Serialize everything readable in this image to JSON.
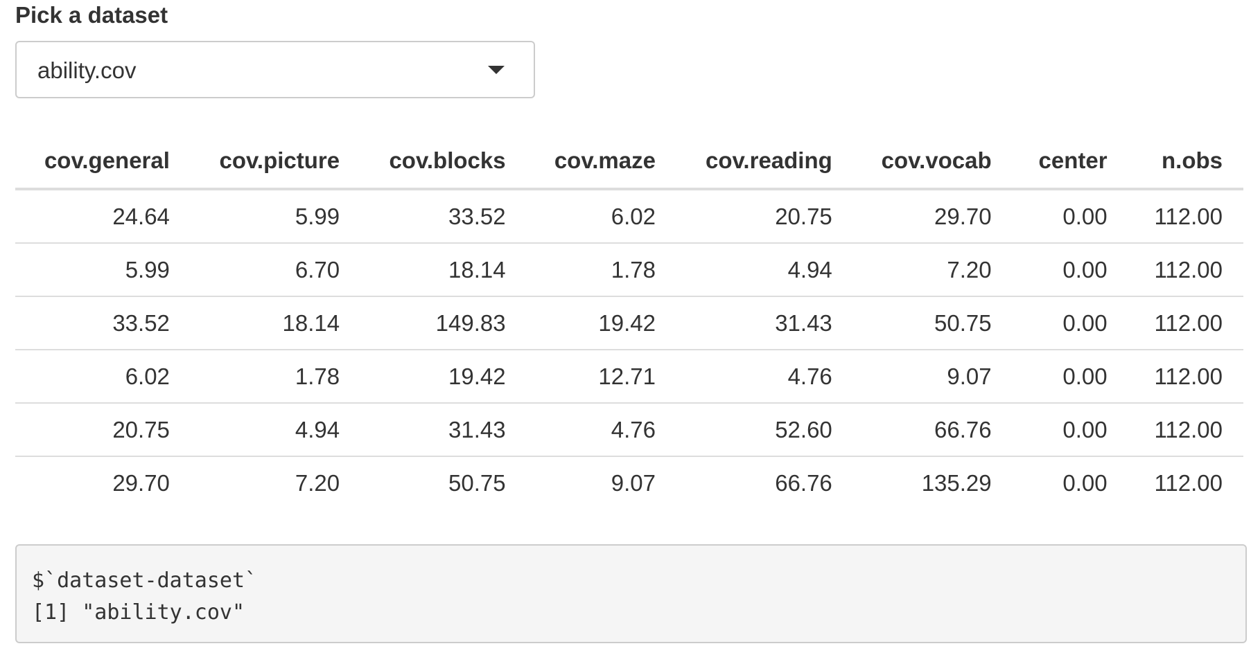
{
  "select": {
    "label": "Pick a dataset",
    "value": "ability.cov",
    "caret_icon": "caret-down-icon"
  },
  "table": {
    "columns": [
      "cov.general",
      "cov.picture",
      "cov.blocks",
      "cov.maze",
      "cov.reading",
      "cov.vocab",
      "center",
      "n.obs"
    ],
    "rows": [
      [
        "24.64",
        "5.99",
        "33.52",
        "6.02",
        "20.75",
        "29.70",
        "0.00",
        "112.00"
      ],
      [
        "5.99",
        "6.70",
        "18.14",
        "1.78",
        "4.94",
        "7.20",
        "0.00",
        "112.00"
      ],
      [
        "33.52",
        "18.14",
        "149.83",
        "19.42",
        "31.43",
        "50.75",
        "0.00",
        "112.00"
      ],
      [
        "6.02",
        "1.78",
        "19.42",
        "12.71",
        "4.76",
        "9.07",
        "0.00",
        "112.00"
      ],
      [
        "20.75",
        "4.94",
        "31.43",
        "4.76",
        "52.60",
        "66.76",
        "0.00",
        "112.00"
      ],
      [
        "29.70",
        "7.20",
        "50.75",
        "9.07",
        "66.76",
        "135.29",
        "0.00",
        "112.00"
      ]
    ]
  },
  "output": {
    "lines": [
      "$`dataset-dataset`",
      "[1] \"ability.cov\""
    ]
  }
}
